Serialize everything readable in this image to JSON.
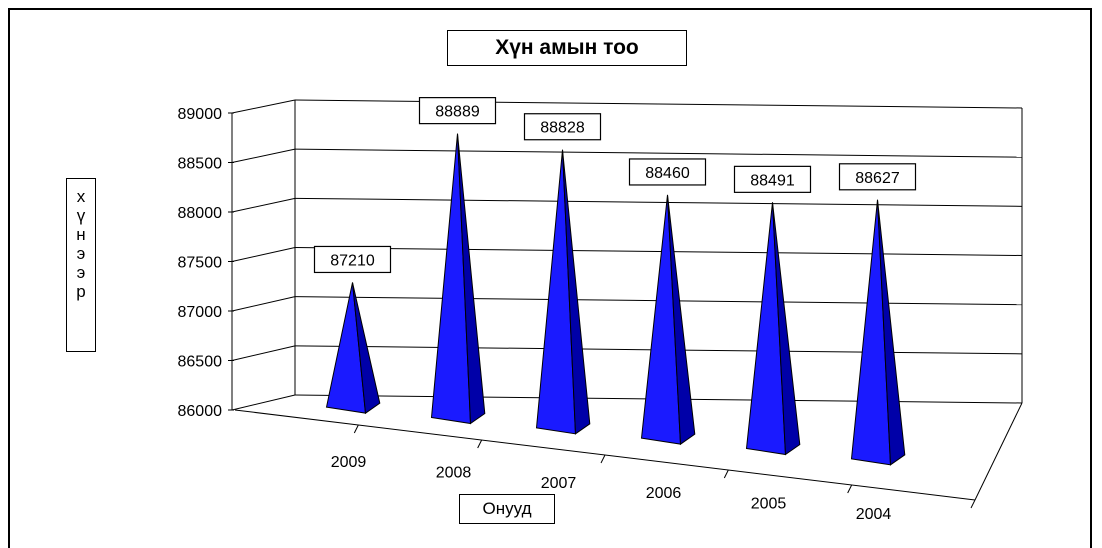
{
  "chart_data": {
    "type": "bar",
    "bar_shape": "pyramid",
    "projection": "3d",
    "title": "Хүн амын тоо",
    "xlabel": "Онууд",
    "ylabel": "хүнээр",
    "categories": [
      "2009",
      "2008",
      "2007",
      "2006",
      "2005",
      "2004"
    ],
    "values": [
      87210,
      88889,
      88828,
      88460,
      88491,
      88627
    ],
    "data_labels": [
      "87210",
      "88889",
      "88828",
      "88460",
      "88491",
      "88627"
    ],
    "ylim": [
      86000,
      89000
    ],
    "y_ticks": [
      "86000",
      "86500",
      "87000",
      "87500",
      "88000",
      "88500",
      "89000"
    ],
    "grid": true,
    "legend": "none",
    "colors": {
      "bar": "#1a1aff",
      "bar_dark": "#0000a8",
      "bar_side": "#2b2bd9"
    }
  }
}
